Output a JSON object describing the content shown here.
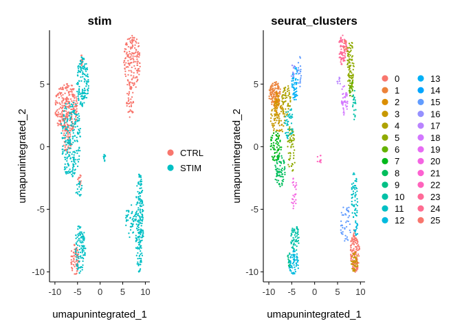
{
  "chart_data": [
    {
      "type": "scatter",
      "title": "stim",
      "xlabel": "umapunintegrated_1",
      "ylabel": "umapunintegrated_2",
      "xlim": [
        -11.2,
        11.0
      ],
      "ylim": [
        -10.8,
        9.3
      ],
      "xticks": [
        -10,
        -5,
        0,
        5,
        10
      ],
      "yticks": [
        -10,
        -5,
        0,
        5
      ],
      "xtick_labels": [
        "-10",
        "-5",
        "0",
        "5",
        "10"
      ],
      "ytick_labels": [
        "-10",
        "-5",
        "0",
        "5"
      ],
      "grid": false,
      "legend_position": "right",
      "legend": [
        {
          "label": "CTRL",
          "color": "#F8766D"
        },
        {
          "label": "STIM",
          "color": "#00BFC4"
        }
      ],
      "regions": [
        {
          "group": "CTRL",
          "x": [
            -10,
            -5
          ],
          "y": [
            1,
            5.2
          ],
          "n": 260
        },
        {
          "group": "CTRL",
          "x": [
            -8.3,
            -6.3
          ],
          "y": [
            -0.5,
            1.8
          ],
          "n": 50
        },
        {
          "group": "CTRL",
          "x": [
            5.2,
            9
          ],
          "y": [
            4.5,
            9
          ],
          "n": 170
        },
        {
          "group": "CTRL",
          "x": [
            5.8,
            7.6
          ],
          "y": [
            2.3,
            4.8
          ],
          "n": 35
        },
        {
          "group": "CTRL",
          "x": [
            -6.5,
            -4.7
          ],
          "y": [
            -10.3,
            -7.8
          ],
          "n": 60
        },
        {
          "group": "CTRL",
          "x": [
            -5,
            -4.1
          ],
          "y": [
            -3.2,
            -2.2
          ],
          "n": 12
        },
        {
          "group": "CTRL",
          "x": [
            -4.4,
            -3.8
          ],
          "y": [
            6.3,
            7.4
          ],
          "n": 12
        },
        {
          "group": "STIM",
          "x": [
            -8.8,
            -4.2
          ],
          "y": [
            -2.5,
            3.8
          ],
          "n": 220
        },
        {
          "group": "STIM",
          "x": [
            -5.2,
            -2.5
          ],
          "y": [
            3.2,
            7.2
          ],
          "n": 130
        },
        {
          "group": "STIM",
          "x": [
            -5.6,
            -3.2
          ],
          "y": [
            -10.2,
            -6.2
          ],
          "n": 110
        },
        {
          "group": "STIM",
          "x": [
            7.8,
            9.6
          ],
          "y": [
            -10.1,
            -2
          ],
          "n": 200
        },
        {
          "group": "STIM",
          "x": [
            5.6,
            7.8
          ],
          "y": [
            -7.4,
            -4.6
          ],
          "n": 40
        },
        {
          "group": "STIM",
          "x": [
            -5.4,
            -4
          ],
          "y": [
            -4.2,
            -2.6
          ],
          "n": 18
        },
        {
          "group": "STIM",
          "x": [
            0.7,
            1.3
          ],
          "y": [
            -1.3,
            -0.6
          ],
          "n": 10
        }
      ]
    },
    {
      "type": "scatter",
      "title": "seurat_clusters",
      "xlabel": "umapunintegrated_1",
      "ylabel": "umapunintegrated_2",
      "xlim": [
        -11.2,
        11.0
      ],
      "ylim": [
        -10.8,
        9.3
      ],
      "xticks": [
        -10,
        -5,
        0,
        5,
        10
      ],
      "yticks": [
        -10,
        -5,
        0,
        5
      ],
      "xtick_labels": [
        "-10",
        "-5",
        "0",
        "5",
        "10"
      ],
      "ytick_labels": [
        "-10",
        "-5",
        "0",
        "5"
      ],
      "grid": false,
      "legend_position": "right",
      "legend": [
        {
          "label": "0",
          "color": "#F8766D"
        },
        {
          "label": "1",
          "color": "#EC8239"
        },
        {
          "label": "2",
          "color": "#DB8E00"
        },
        {
          "label": "3",
          "color": "#C79800"
        },
        {
          "label": "4",
          "color": "#AEA200"
        },
        {
          "label": "5",
          "color": "#8FAA00"
        },
        {
          "label": "6",
          "color": "#64B200"
        },
        {
          "label": "7",
          "color": "#00B81B"
        },
        {
          "label": "8",
          "color": "#00BD5C"
        },
        {
          "label": "9",
          "color": "#00C085"
        },
        {
          "label": "10",
          "color": "#00C1A7"
        },
        {
          "label": "11",
          "color": "#00BFC4"
        },
        {
          "label": "12",
          "color": "#00BADE"
        },
        {
          "label": "13",
          "color": "#00B0F6"
        },
        {
          "label": "14",
          "color": "#00A5FF"
        },
        {
          "label": "15",
          "color": "#619CFF"
        },
        {
          "label": "16",
          "color": "#9590FF"
        },
        {
          "label": "17",
          "color": "#B983FF"
        },
        {
          "label": "18",
          "color": "#D277FF"
        },
        {
          "label": "19",
          "color": "#E76BF3"
        },
        {
          "label": "20",
          "color": "#F464E2"
        },
        {
          "label": "21",
          "color": "#FD61D1"
        },
        {
          "label": "22",
          "color": "#FF63BC"
        },
        {
          "label": "23",
          "color": "#FF6A98"
        },
        {
          "label": "24",
          "color": "#FF6C91"
        },
        {
          "label": "25",
          "color": "#F8766D"
        }
      ],
      "regions": [
        {
          "group": "1",
          "x": [
            -10,
            -7.3
          ],
          "y": [
            3.2,
            5.2
          ],
          "n": 110
        },
        {
          "group": "3",
          "x": [
            -9.6,
            -6.5
          ],
          "y": [
            0.8,
            3.6
          ],
          "n": 90
        },
        {
          "group": "4",
          "x": [
            -7.2,
            -5.2
          ],
          "y": [
            2.5,
            5
          ],
          "n": 60
        },
        {
          "group": "2",
          "x": [
            -8.8,
            -7.6
          ],
          "y": [
            2.4,
            4.4
          ],
          "n": 40
        },
        {
          "group": "7",
          "x": [
            -9.8,
            -7.2
          ],
          "y": [
            -1.2,
            1.2
          ],
          "n": 70
        },
        {
          "group": "8",
          "x": [
            -8.8,
            -6.4
          ],
          "y": [
            -3.2,
            -0.6
          ],
          "n": 70
        },
        {
          "group": "5",
          "x": [
            -6,
            -4.2
          ],
          "y": [
            -2.2,
            1.8
          ],
          "n": 60
        },
        {
          "group": "11",
          "x": [
            -6.6,
            -4.6
          ],
          "y": [
            0.5,
            3.2
          ],
          "n": 45
        },
        {
          "group": "13",
          "x": [
            -5,
            -3.5
          ],
          "y": [
            3.6,
            6.6
          ],
          "n": 55
        },
        {
          "group": "15",
          "x": [
            -3.8,
            -2.9
          ],
          "y": [
            4.6,
            7.3
          ],
          "n": 20
        },
        {
          "group": "16",
          "x": [
            -5.2,
            -4.2
          ],
          "y": [
            5.3,
            6.6
          ],
          "n": 12
        },
        {
          "group": "20",
          "x": [
            -5.2,
            -3.8
          ],
          "y": [
            -5,
            -2.4
          ],
          "n": 25
        },
        {
          "group": "22",
          "x": [
            0.5,
            1.5
          ],
          "y": [
            -1.4,
            -0.6
          ],
          "n": 10
        },
        {
          "group": "10",
          "x": [
            -5.2,
            -3.4
          ],
          "y": [
            -8.4,
            -6.2
          ],
          "n": 60
        },
        {
          "group": "12",
          "x": [
            -5.8,
            -3.4
          ],
          "y": [
            -10.2,
            -8.3
          ],
          "n": 70
        },
        {
          "group": "9",
          "x": [
            -6,
            -5.2
          ],
          "y": [
            -9.6,
            -8.4
          ],
          "n": 12
        },
        {
          "group": "0",
          "x": [
            7.8,
            9.8
          ],
          "y": [
            -10.1,
            -6.6
          ],
          "n": 130
        },
        {
          "group": "3",
          "x": [
            8,
            9.6
          ],
          "y": [
            -10.2,
            -8.4
          ],
          "n": 40
        },
        {
          "group": "11",
          "x": [
            8,
            9.4
          ],
          "y": [
            -6.2,
            -2
          ],
          "n": 60
        },
        {
          "group": "12",
          "x": [
            8.6,
            9.6
          ],
          "y": [
            -7.2,
            -6
          ],
          "n": 15
        },
        {
          "group": "15",
          "x": [
            5.6,
            8.2
          ],
          "y": [
            -7.6,
            -4.6
          ],
          "n": 40
        },
        {
          "group": "23",
          "x": [
            5.2,
            7
          ],
          "y": [
            6.5,
            9
          ],
          "n": 70
        },
        {
          "group": "25",
          "x": [
            6.2,
            7.6
          ],
          "y": [
            7.5,
            8.8
          ],
          "n": 20
        },
        {
          "group": "5",
          "x": [
            7,
            8.6
          ],
          "y": [
            4.6,
            8.6
          ],
          "n": 90
        },
        {
          "group": "6",
          "x": [
            7.4,
            8.4
          ],
          "y": [
            3.8,
            5.5
          ],
          "n": 20
        },
        {
          "group": "18",
          "x": [
            5.8,
            7.2
          ],
          "y": [
            2.4,
            5.2
          ],
          "n": 40
        },
        {
          "group": "10",
          "x": [
            8.3,
            9
          ],
          "y": [
            1.8,
            4.5
          ],
          "n": 20
        },
        {
          "group": "17",
          "x": [
            4.9,
            5.6
          ],
          "y": [
            4.8,
            5.6
          ],
          "n": 8
        }
      ]
    }
  ]
}
